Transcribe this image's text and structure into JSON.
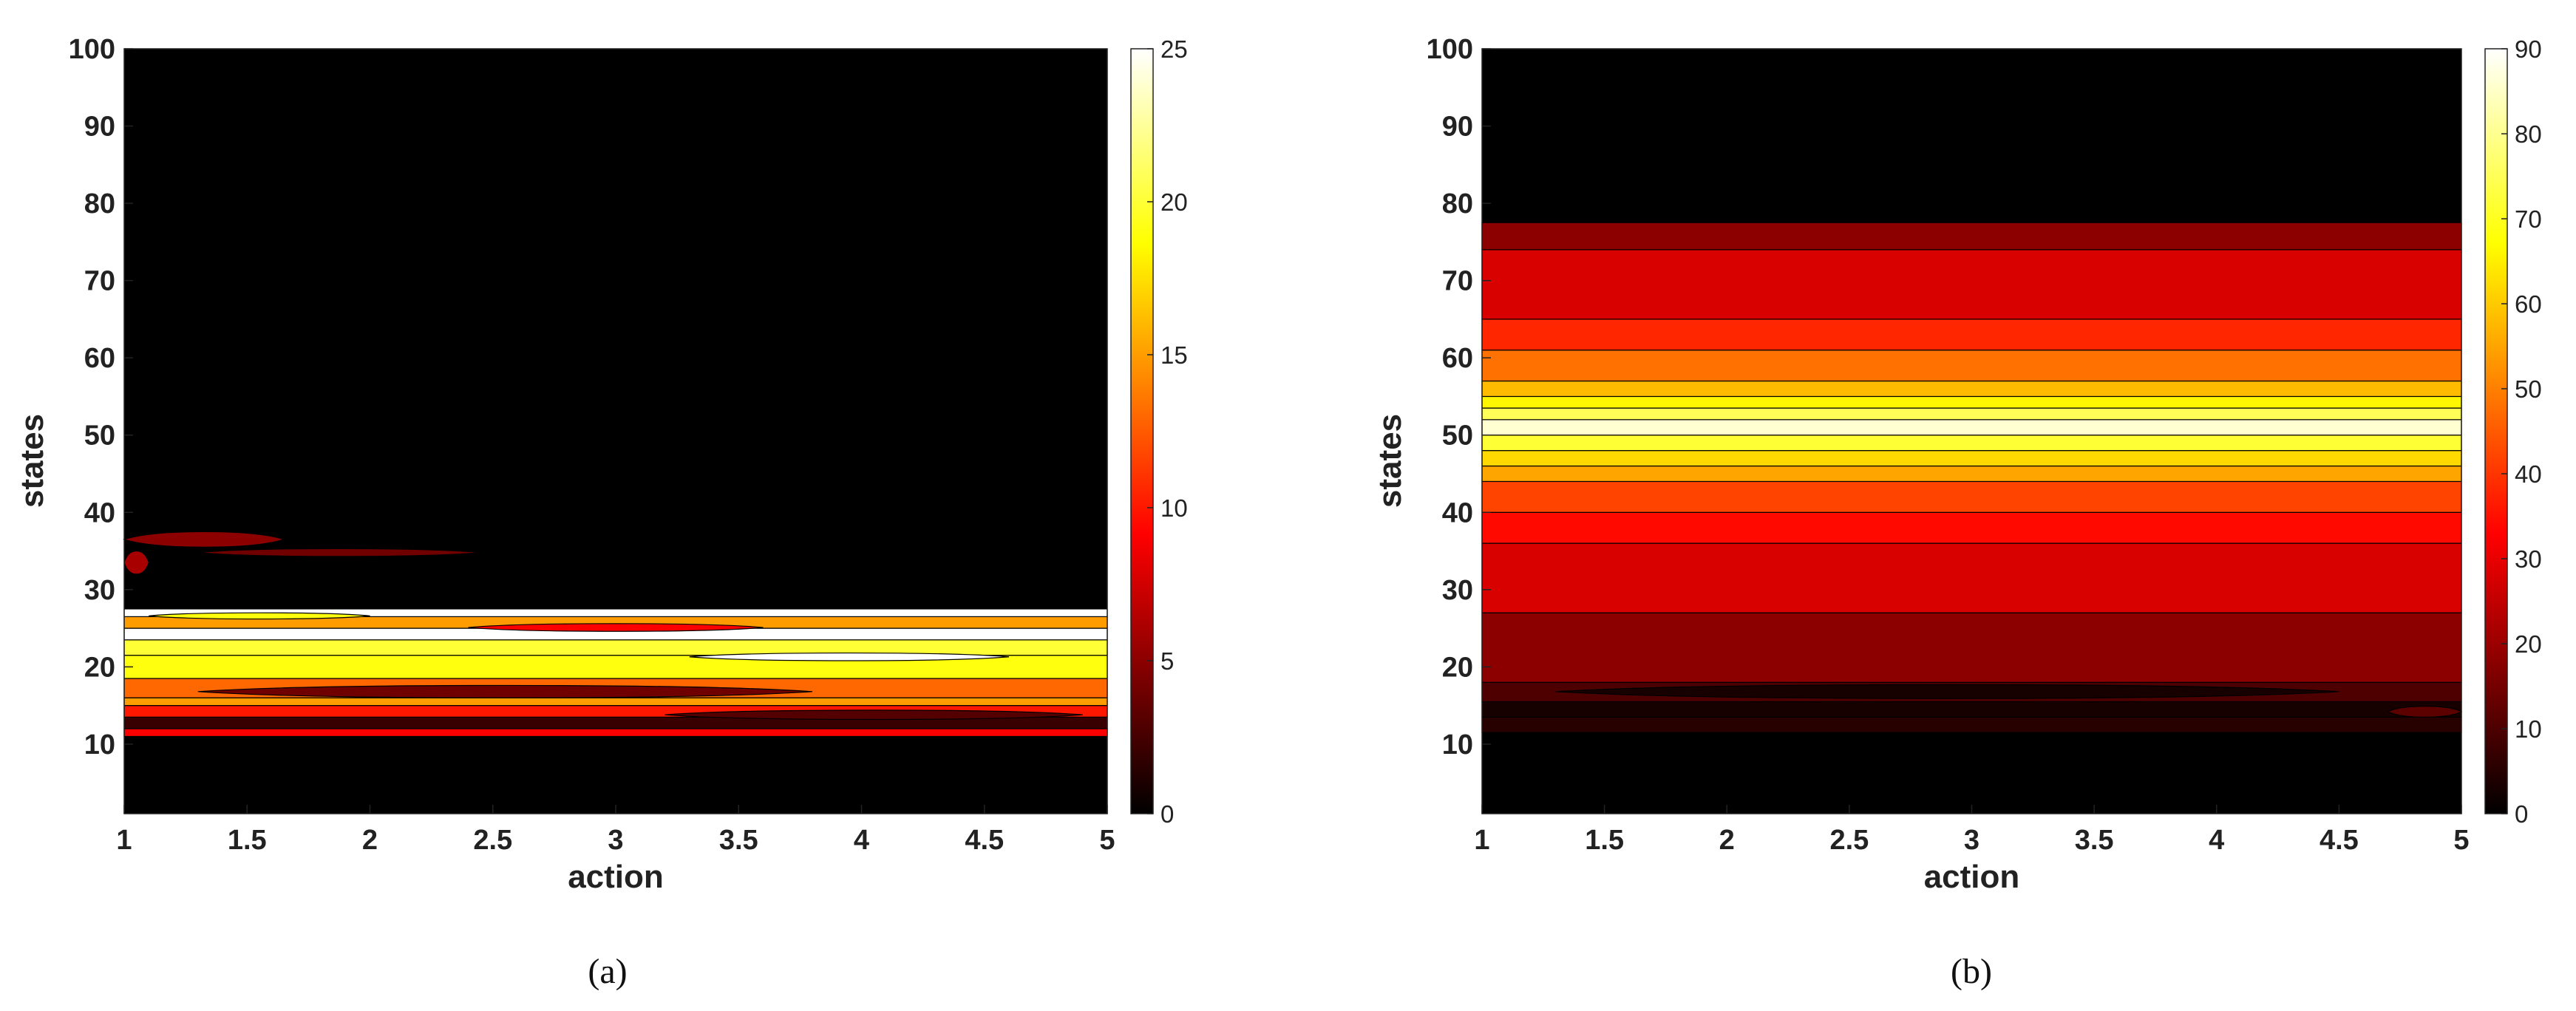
{
  "chart_data": [
    {
      "type": "contour",
      "caption": "(a)",
      "xlabel": "action",
      "ylabel": "states",
      "xlim": [
        1,
        5
      ],
      "ylim": [
        1,
        100
      ],
      "x_ticks": [
        "1",
        "1.5",
        "2",
        "2.5",
        "3",
        "3.5",
        "4",
        "4.5",
        "5"
      ],
      "y_ticks": [
        "10",
        "20",
        "30",
        "40",
        "50",
        "60",
        "70",
        "80",
        "90",
        "100"
      ],
      "colormap": "hot",
      "colorbar": {
        "range": [
          0,
          25
        ],
        "ticks": [
          "0",
          "5",
          "10",
          "15",
          "20",
          "25"
        ]
      },
      "bands": [
        {
          "y_from": 11,
          "y_to": 12,
          "value": 9
        },
        {
          "y_from": 12,
          "y_to": 13.5,
          "value": 2
        },
        {
          "y_from": 13.5,
          "y_to": 15,
          "value": 10
        },
        {
          "y_from": 15,
          "y_to": 16,
          "value": 15
        },
        {
          "y_from": 16,
          "y_to": 18.5,
          "value": 13
        },
        {
          "y_from": 18.5,
          "y_to": 21.5,
          "value": 19
        },
        {
          "y_from": 21.5,
          "y_to": 23.5,
          "value": 20
        },
        {
          "y_from": 23.5,
          "y_to": 25,
          "value": 25
        },
        {
          "y_from": 25,
          "y_to": 26.5,
          "value": 15
        },
        {
          "y_from": 26.5,
          "y_to": 27.5,
          "value": 25
        }
      ],
      "blobs": [
        {
          "x_from": 1,
          "x_to": 1.65,
          "y_center": 36.5,
          "half_height": 1.0,
          "value": 5
        },
        {
          "x_from": 1.3,
          "x_to": 2.45,
          "y_center": 34.8,
          "half_height": 0.5,
          "value": 4
        },
        {
          "x_from": 1.0,
          "x_to": 1.1,
          "y_center": 33.5,
          "half_height": 1.5,
          "value": 6
        },
        {
          "x_from": 1.3,
          "x_to": 3.8,
          "y_center": 16.8,
          "half_height": 0.8,
          "value": 4
        },
        {
          "x_from": 3.2,
          "x_to": 4.9,
          "y_center": 13.8,
          "half_height": 0.6,
          "value": 3
        },
        {
          "x_from": 3.3,
          "x_to": 4.6,
          "y_center": 21.3,
          "half_height": 0.5,
          "value": 25
        },
        {
          "x_from": 2.4,
          "x_to": 3.6,
          "y_center": 25.1,
          "half_height": 0.5,
          "value": 9
        },
        {
          "x_from": 1.1,
          "x_to": 2.0,
          "y_center": 26.6,
          "half_height": 0.4,
          "value": 19
        }
      ]
    },
    {
      "type": "contour",
      "caption": "(b)",
      "xlabel": "action",
      "ylabel": "states",
      "xlim": [
        1,
        5
      ],
      "ylim": [
        1,
        100
      ],
      "x_ticks": [
        "1",
        "1.5",
        "2",
        "2.5",
        "3",
        "3.5",
        "4",
        "4.5",
        "5"
      ],
      "y_ticks": [
        "10",
        "20",
        "30",
        "40",
        "50",
        "60",
        "70",
        "80",
        "90",
        "100"
      ],
      "colormap": "hot",
      "colorbar": {
        "range": [
          0,
          90
        ],
        "ticks": [
          "0",
          "10",
          "20",
          "30",
          "40",
          "50",
          "60",
          "70",
          "80",
          "90"
        ]
      },
      "bands": [
        {
          "y_from": 11.5,
          "y_to": 13.5,
          "value": 5
        },
        {
          "y_from": 13.5,
          "y_to": 15.5,
          "value": 3
        },
        {
          "y_from": 15.5,
          "y_to": 18,
          "value": 10
        },
        {
          "y_from": 18,
          "y_to": 27,
          "value": 18
        },
        {
          "y_from": 27,
          "y_to": 36,
          "value": 28
        },
        {
          "y_from": 36,
          "y_to": 40,
          "value": 34
        },
        {
          "y_from": 40,
          "y_to": 44,
          "value": 42
        },
        {
          "y_from": 44,
          "y_to": 46,
          "value": 55
        },
        {
          "y_from": 46,
          "y_to": 48,
          "value": 62
        },
        {
          "y_from": 48,
          "y_to": 50,
          "value": 72
        },
        {
          "y_from": 50,
          "y_to": 52,
          "value": 86
        },
        {
          "y_from": 52,
          "y_to": 53.5,
          "value": 75
        },
        {
          "y_from": 53.5,
          "y_to": 55,
          "value": 66
        },
        {
          "y_from": 55,
          "y_to": 57,
          "value": 58
        },
        {
          "y_from": 57,
          "y_to": 61,
          "value": 48
        },
        {
          "y_from": 61,
          "y_to": 65,
          "value": 38
        },
        {
          "y_from": 65,
          "y_to": 74,
          "value": 28
        },
        {
          "y_from": 74,
          "y_to": 77.5,
          "value": 18
        }
      ],
      "blobs": [
        {
          "x_from": 1.3,
          "x_to": 4.5,
          "y_center": 16.8,
          "half_height": 0.9,
          "value": 3
        },
        {
          "x_from": 4.7,
          "x_to": 5,
          "y_center": 14.2,
          "half_height": 0.7,
          "value": 12
        }
      ]
    }
  ]
}
